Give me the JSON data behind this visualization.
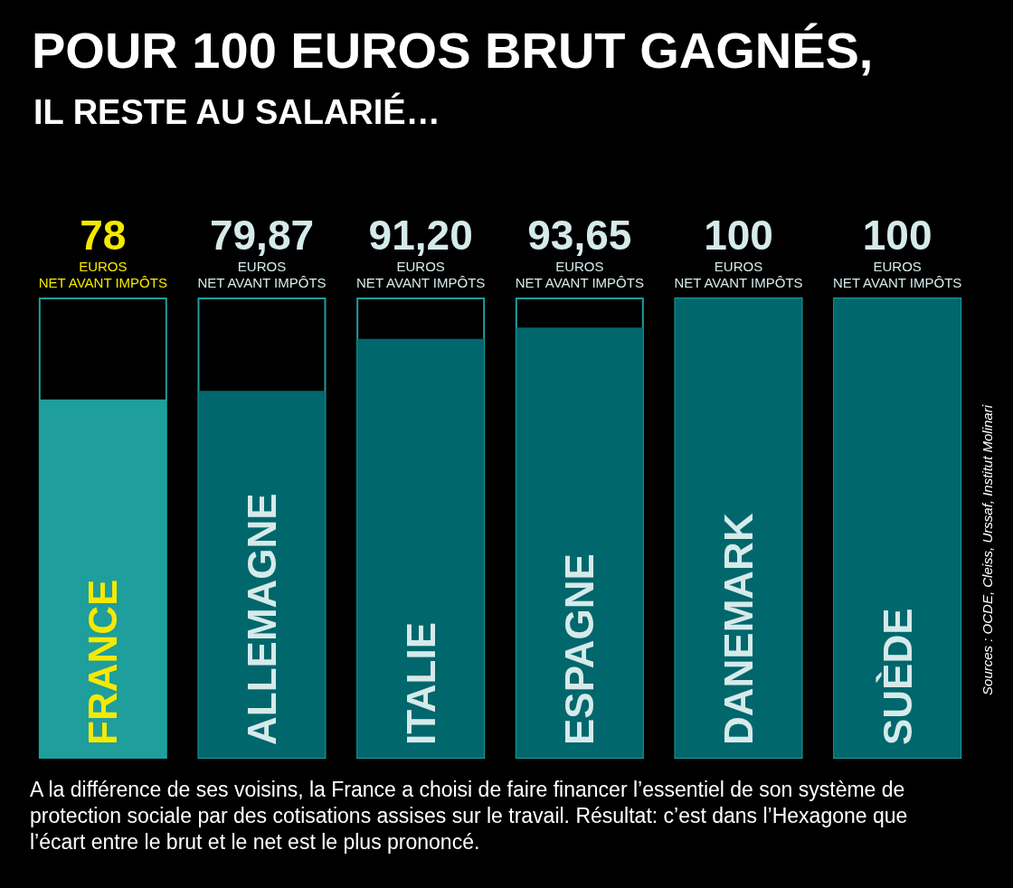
{
  "chart_data": {
    "type": "bar",
    "title": "POUR 100 EUROS BRUT GAGNÉS,",
    "subtitle": "IL RESTE AU SALARIÉ…",
    "categories": [
      "FRANCE",
      "ALLEMAGNE",
      "ITALIE",
      "ESPAGNE",
      "DANEMARK",
      "SUÈDE"
    ],
    "values": [
      78,
      79.87,
      91.2,
      93.65,
      100,
      100
    ],
    "colors": [
      "#1e9e9c",
      "#00676d",
      "#00676d",
      "#00676d",
      "#00676d",
      "#00676d"
    ],
    "value_labels": [
      "78\nEUROS\nNET AVANT IMPÔTS",
      "79,87\nEUROS\nNET AVANT IMPÔTS",
      "91,20\nEUROS\nNET AVANT IMPÔTS",
      "93,65\nEUROS\nNET AVANT IMPÔTS",
      "100\nEUROS\nNET AVANT IMPÔTS",
      "100\nEUROS\nNET AVANT IMPÔTS"
    ],
    "ylim": [
      0,
      100
    ],
    "tick_labels": "x",
    "annotations": [
      "Sources : OCDE, Cleiss, Urssaf, Institut Molinari",
      "A la différence de ses voisins, la France a choisi de faire financer l’essentiel de son système de protection sociale par des cotisations assises sur le travail. Résultat: c’est dans l’Hexagone que l’écart entre le brut et le net est le plus prononcé."
    ]
  }
}
